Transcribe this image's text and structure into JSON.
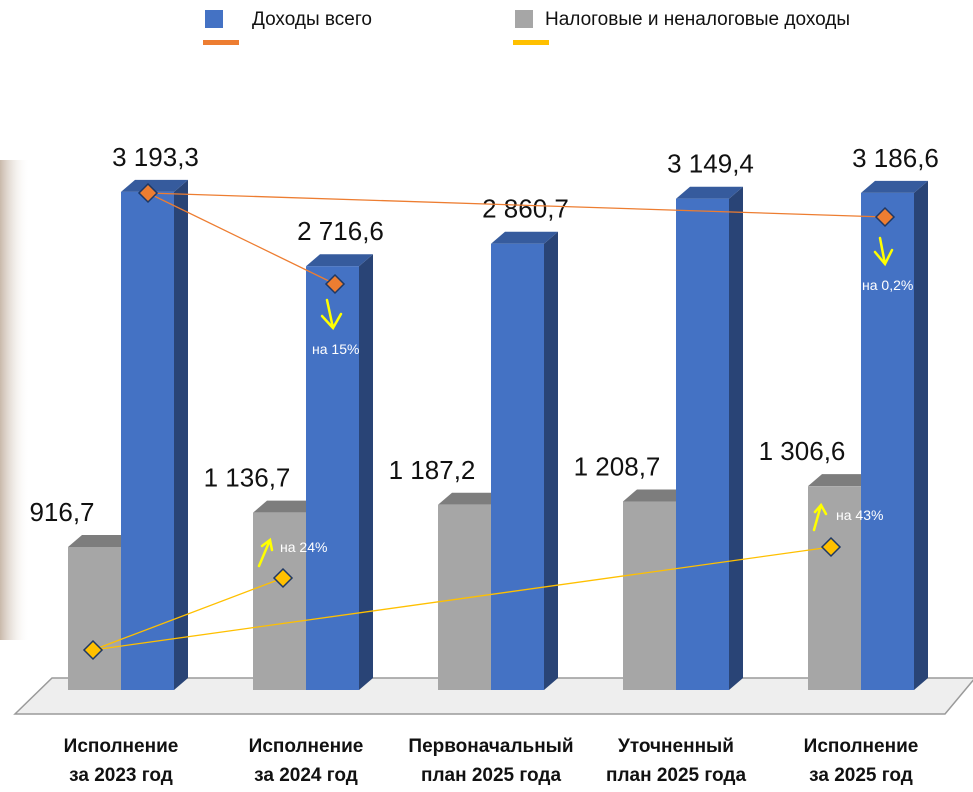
{
  "chart_data": {
    "type": "bar3d",
    "categories": [
      [
        "Исполнение",
        "за 2023 год"
      ],
      [
        "Исполнение",
        "за 2024 год"
      ],
      [
        "Первоначальный",
        "план 2025 года"
      ],
      [
        "Уточненный",
        "план 2025 года"
      ],
      [
        "Исполнение",
        "за 2025 год"
      ]
    ],
    "series": [
      {
        "name": "Налоговые и неналоговые доходы",
        "color": "#a6a6a6",
        "trend_color": "#ffc000",
        "values": [
          916.7,
          1136.7,
          1187.2,
          1208.7,
          1306.6
        ],
        "value_labels": [
          "916,7",
          "1 136,7",
          "1 187,2",
          "1 208,7",
          "1 306,6"
        ]
      },
      {
        "name": "Доходы всего",
        "color": "#4472c4",
        "trend_color": "#ed7d31",
        "values": [
          3193.3,
          2716.6,
          2860.7,
          3149.4,
          3186.6
        ],
        "value_labels": [
          "3 193,3",
          "2 716,6",
          "2 860,7",
          "3 149,4",
          "3 186,6"
        ]
      }
    ],
    "annotations": [
      "на 15%",
      "на 0,2%",
      "на 24%",
      "на 43%"
    ]
  }
}
